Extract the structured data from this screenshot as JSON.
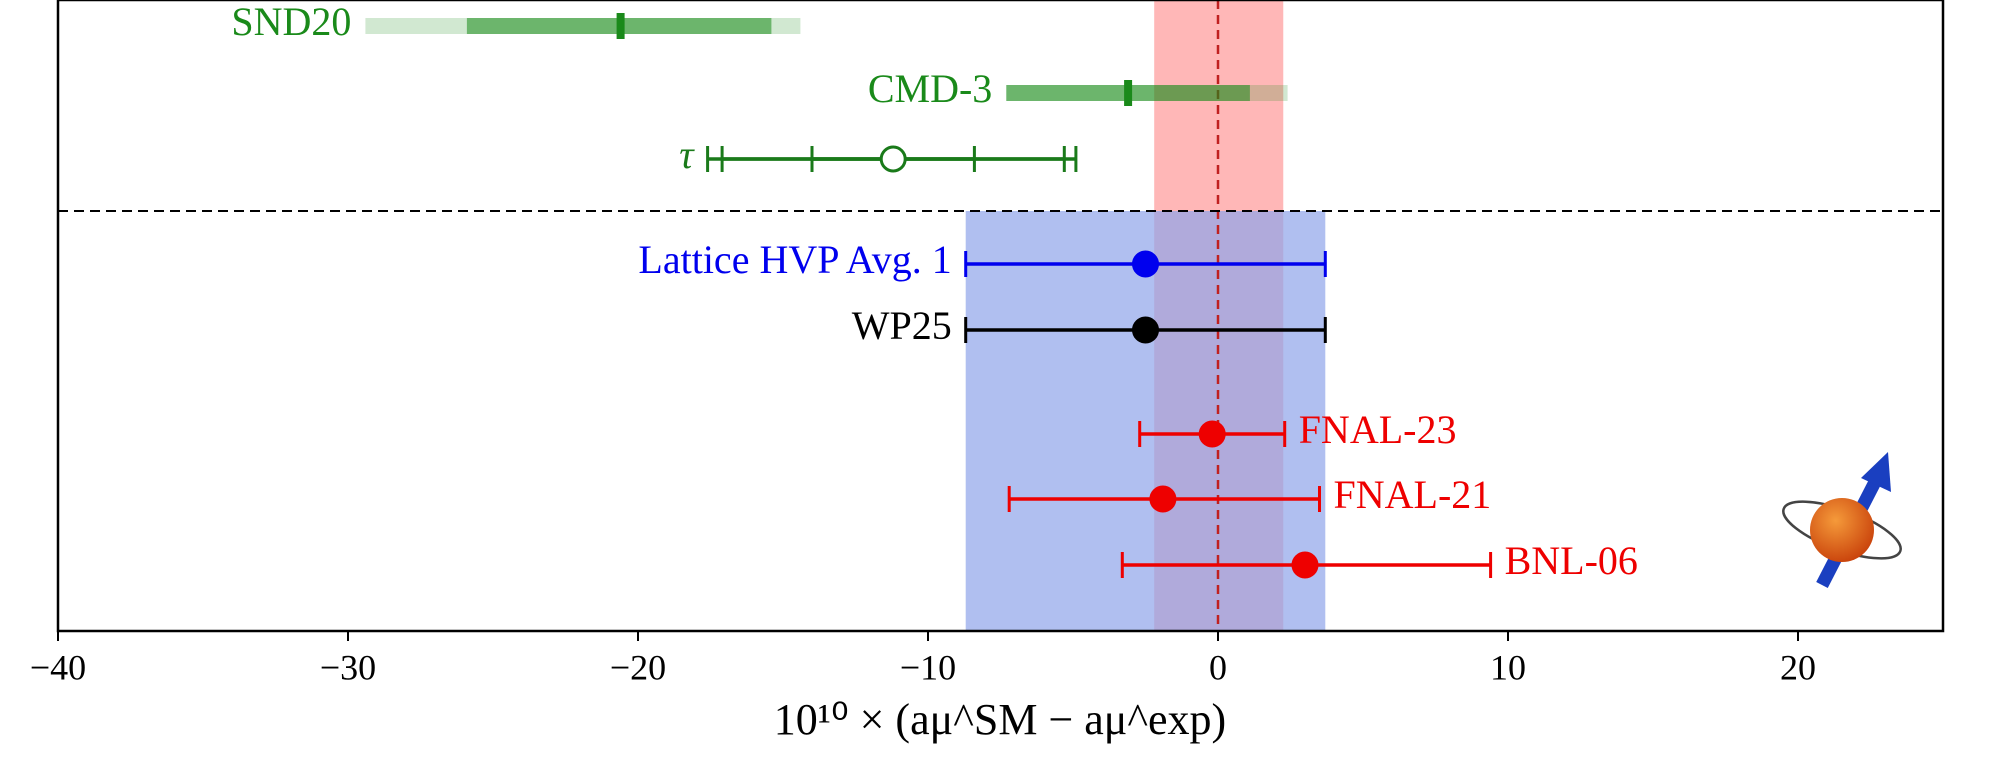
{
  "chart_data": {
    "type": "forest",
    "xlabel": "10¹⁰ × (aμ^SM − aμ^exp)",
    "xlim": [
      -40,
      25
    ],
    "xticks": [
      {
        "value": -40,
        "label": "−40"
      },
      {
        "value": -30,
        "label": "−30"
      },
      {
        "value": -20,
        "label": "−20"
      },
      {
        "value": -10,
        "label": "−10"
      },
      0,
      10,
      20
    ],
    "reference_line": 0,
    "bands": [
      {
        "color": "#ff9999",
        "range": [
          -2.2,
          2.25
        ]
      },
      {
        "color": "#8fa4ea",
        "range": [
          -8.7,
          3.7
        ]
      }
    ],
    "series": [
      {
        "name": "SND20",
        "color": "#1a8a1a",
        "style": "band",
        "value": -20.6,
        "intervals": [
          [
            -25.9,
            -15.4
          ],
          [
            -29.4,
            -14.4
          ]
        ]
      },
      {
        "name": "CMD-3",
        "color": "#1a8a1a",
        "style": "band",
        "value": -3.1,
        "intervals": [
          [
            -7.3,
            1.1
          ],
          [
            -7.3,
            2.4
          ]
        ]
      },
      {
        "name": "τ",
        "color": "#1a7a1a",
        "style": "open",
        "value": -11.2,
        "intervals": [
          [
            -14.0,
            -8.4
          ],
          [
            -17.1,
            -5.3
          ],
          [
            -17.6,
            -4.9
          ]
        ]
      },
      {
        "name": "Lattice HVP Avg. 1",
        "color": "#0000ee",
        "style": "filled",
        "value": -2.5,
        "intervals": [
          [
            -8.7,
            3.7
          ]
        ]
      },
      {
        "name": "WP25",
        "color": "#000000",
        "style": "filled",
        "value": -2.5,
        "intervals": [
          [
            -8.7,
            3.7
          ]
        ]
      },
      {
        "name": "FNAL-23",
        "color": "#ee0000",
        "style": "filled",
        "value": -0.2,
        "intervals": [
          [
            -2.7,
            2.3
          ]
        ]
      },
      {
        "name": "FNAL-21",
        "color": "#ee0000",
        "style": "filled",
        "value": -1.9,
        "intervals": [
          [
            -7.2,
            3.5
          ]
        ]
      },
      {
        "name": "BNL-06",
        "color": "#ee0000",
        "style": "filled",
        "value": 3.0,
        "intervals": [
          [
            -3.3,
            9.4
          ]
        ]
      }
    ]
  }
}
